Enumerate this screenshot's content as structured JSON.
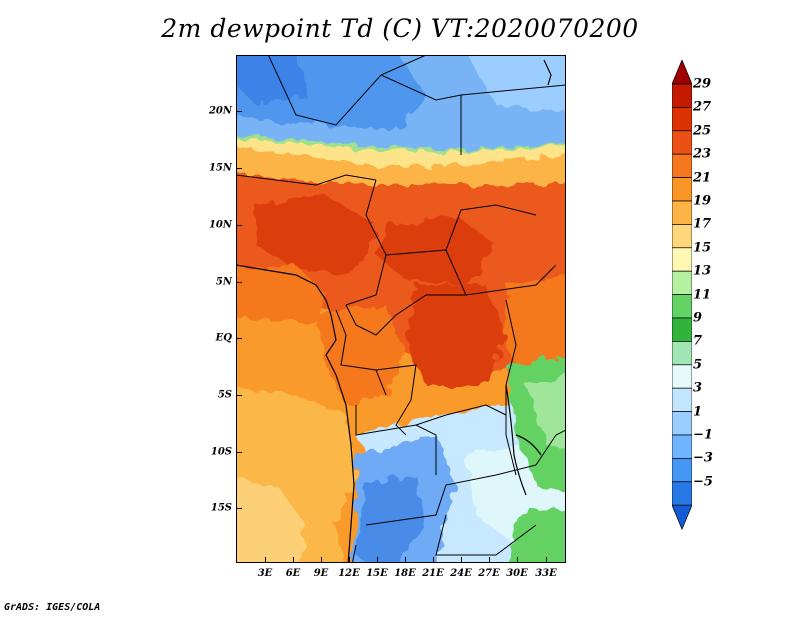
{
  "title": "2m dewpoint Td (C) VT:2020070200",
  "credit": "GrADS: IGES/COLA",
  "map": {
    "variable": "2m dewpoint Td",
    "units": "C",
    "valid_time": "2020070200",
    "lat_labels": [
      "20N",
      "15N",
      "10N",
      "5N",
      "EQ",
      "5S",
      "10S",
      "15S"
    ],
    "lon_labels": [
      "3E",
      "6E",
      "9E",
      "12E",
      "15E",
      "18E",
      "21E",
      "24E",
      "27E",
      "30E",
      "33E"
    ]
  },
  "colorbar": {
    "labels": [
      "29",
      "27",
      "25",
      "23",
      "21",
      "19",
      "17",
      "15",
      "13",
      "11",
      "9",
      "7",
      "5",
      "3",
      "1",
      "−1",
      "−3",
      "−5"
    ],
    "colors": [
      "#a00000",
      "#c31a00",
      "#dc3200",
      "#eb5014",
      "#f5781e",
      "#fa9628",
      "#fcb446",
      "#fdd77a",
      "#fff7b4",
      "#b4f0a0",
      "#64d264",
      "#32b43c",
      "#a0e6b4",
      "#e6fafa",
      "#c3e6ff",
      "#9ccdff",
      "#6eb4ff",
      "#4696f5",
      "#2878e6",
      "#145ad2"
    ]
  }
}
